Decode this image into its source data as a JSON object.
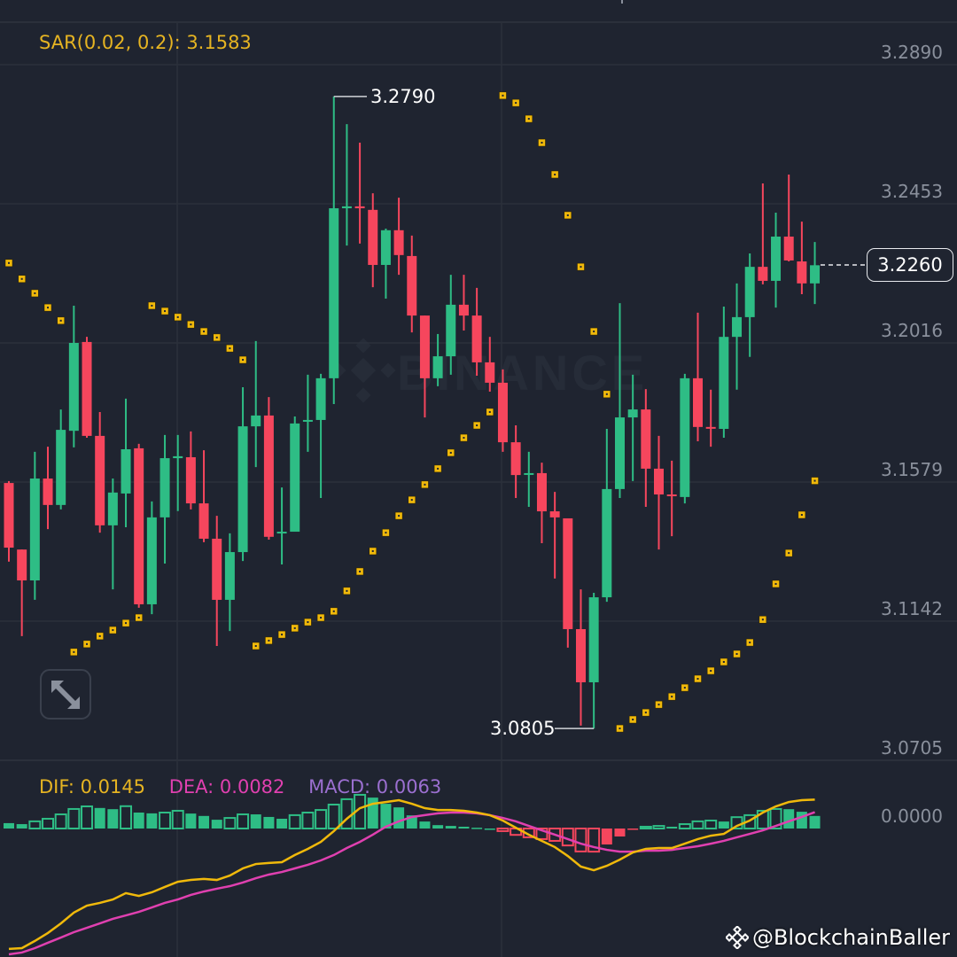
{
  "colors": {
    "background": "#1f2430",
    "up": "#2ebd85",
    "down": "#f6465d",
    "sar": "#f0b90b",
    "dif": "#f0b90b",
    "dea": "#e040b0",
    "macd_label": "#9b6fd0",
    "grid": "#2b303b",
    "axis_text": "#8a909c"
  },
  "legend": {
    "sar": "SAR(0.02, 0.2): 3.1583",
    "dif": "DIF: 0.0145",
    "dea": "DEA: 0.0082",
    "macd": "MACD: 0.0063"
  },
  "watermark": "BINANCE",
  "credit": "@BlockchainBaller",
  "expand_icon": "expand-arrows-icon",
  "chart_data": [
    {
      "type": "candlestick",
      "title": "",
      "yaxis_ticks": [
        "3.2890",
        "3.2453",
        "3.2016",
        "3.1579",
        "3.1142",
        "3.0705"
      ],
      "ylim": [
        3.0705,
        3.289
      ],
      "grid": true,
      "current_price": "3.2260",
      "high_label": "3.2790",
      "low_label": "3.0805",
      "high_index": 25,
      "low_index": 45,
      "open": [
        3.1576,
        3.1367,
        3.127,
        3.159,
        3.1507,
        3.174,
        3.2019,
        3.1724,
        3.1443,
        3.1543,
        3.1685,
        3.1195,
        3.1468,
        3.1654,
        3.1657,
        3.1512,
        3.1401,
        3.1209,
        3.1359,
        3.1754,
        3.1788,
        3.1418,
        3.1423,
        3.1771,
        3.1774,
        3.1905,
        3.2439,
        3.2445,
        3.2434,
        3.2261,
        3.237,
        3.2289,
        3.2102,
        3.1905,
        3.1974,
        3.2136,
        3.2102,
        3.1955,
        3.1891,
        3.1704,
        3.1604,
        3.1607,
        3.1487,
        3.1465,
        3.1117,
        3.095,
        3.1217,
        3.1557,
        3.1782,
        3.1807,
        3.1621,
        3.154,
        3.1532,
        3.1905,
        3.1752,
        3.1746,
        3.2035,
        3.2097,
        3.2255,
        3.2211,
        3.235,
        3.2272,
        3.2203
      ],
      "high": [
        3.1582,
        3.1367,
        3.1674,
        3.169,
        3.1807,
        3.2133,
        3.2035,
        3.1799,
        3.159,
        3.1841,
        3.1699,
        3.1518,
        3.1727,
        3.1727,
        3.1738,
        3.1679,
        3.1473,
        3.1418,
        3.1877,
        3.2022,
        3.1846,
        3.1562,
        3.1785,
        3.1916,
        3.1919,
        3.279,
        3.2703,
        3.2645,
        3.2486,
        3.2375,
        3.2472,
        3.2353,
        3.2102,
        3.2044,
        3.223,
        3.223,
        3.2189,
        3.2035,
        3.1933,
        3.1757,
        3.1674,
        3.164,
        3.1548,
        3.1465,
        3.1242,
        3.1231,
        3.1746,
        3.2141,
        3.1916,
        3.1871,
        3.1724,
        3.1646,
        3.1919,
        3.2111,
        3.1869,
        3.213,
        3.2203,
        3.2297,
        3.2517,
        3.2425,
        3.2545,
        3.2397,
        3.2333
      ],
      "low": [
        3.1329,
        3.1095,
        3.1209,
        3.1431,
        3.1493,
        3.1688,
        3.1718,
        3.142,
        3.1242,
        3.1437,
        3.1184,
        3.1164,
        3.1323,
        3.1488,
        3.1493,
        3.139,
        3.1064,
        3.1111,
        3.1331,
        3.1626,
        3.1398,
        3.132,
        3.1423,
        3.1674,
        3.1529,
        3.1824,
        3.2322,
        3.2328,
        3.2191,
        3.2155,
        3.223,
        3.2049,
        3.1782,
        3.188,
        3.1916,
        3.2055,
        3.1913,
        3.1863,
        3.1674,
        3.1529,
        3.1501,
        3.1387,
        3.1276,
        3.1059,
        3.0814,
        3.0805,
        3.1203,
        3.1529,
        3.1582,
        3.1501,
        3.1367,
        3.1409,
        3.1512,
        3.1707,
        3.169,
        3.1718,
        3.1869,
        3.1972,
        3.22,
        3.2127,
        3.2272,
        3.2169,
        3.2138
      ],
      "close": [
        3.1373,
        3.127,
        3.159,
        3.1507,
        3.1743,
        3.2016,
        3.1724,
        3.1443,
        3.1546,
        3.1682,
        3.1195,
        3.1468,
        3.1654,
        3.166,
        3.1512,
        3.1401,
        3.1209,
        3.1359,
        3.1754,
        3.1788,
        3.1407,
        3.1423,
        3.1763,
        3.1774,
        3.1905,
        3.2439,
        3.2445,
        3.2439,
        3.2261,
        3.237,
        3.2292,
        3.2102,
        3.1905,
        3.1974,
        3.2136,
        3.2102,
        3.1955,
        3.1891,
        3.1704,
        3.1601,
        3.1607,
        3.1487,
        3.1468,
        3.1117,
        3.095,
        3.1217,
        3.1557,
        3.1782,
        3.1807,
        3.1621,
        3.154,
        3.1535,
        3.1905,
        3.1752,
        3.1749,
        3.2035,
        3.2097,
        3.2255,
        3.2211,
        3.235,
        3.2275,
        3.2203,
        3.226
      ],
      "sar": [
        3.2267,
        3.2217,
        3.2172,
        3.2127,
        3.2086,
        3.1045,
        3.107,
        3.1095,
        3.1114,
        3.1136,
        3.1153,
        3.2133,
        3.2116,
        3.2097,
        3.2074,
        3.2052,
        3.2033,
        3.1999,
        3.1963,
        3.1064,
        3.1081,
        3.11,
        3.112,
        3.1139,
        3.1153,
        3.1173,
        3.1237,
        3.1298,
        3.1362,
        3.142,
        3.1473,
        3.1523,
        3.1571,
        3.1621,
        3.1671,
        3.1718,
        3.1757,
        3.1799,
        3.2793,
        3.277,
        3.272,
        3.2645,
        3.2545,
        3.2417,
        3.2255,
        3.2052,
        3.1855,
        3.0805,
        3.0833,
        3.0855,
        3.088,
        3.0905,
        3.0933,
        3.0961,
        3.0986,
        3.1014,
        3.1039,
        3.1075,
        3.1147,
        3.1259,
        3.1356,
        3.1476,
        3.1583
      ]
    },
    {
      "type": "bar+line",
      "yaxis_ticks": [
        "0.0000"
      ],
      "dif": [
        -0.0604,
        -0.06,
        -0.0564,
        -0.0524,
        -0.0476,
        -0.0422,
        -0.0387,
        -0.0373,
        -0.0356,
        -0.0324,
        -0.0338,
        -0.032,
        -0.0293,
        -0.0267,
        -0.0258,
        -0.0253,
        -0.0258,
        -0.0236,
        -0.02,
        -0.0178,
        -0.0173,
        -0.0169,
        -0.0133,
        -0.0102,
        -0.0067,
        -0.0013,
        0.0049,
        0.0102,
        0.0124,
        0.0133,
        0.0142,
        0.0124,
        0.0102,
        0.0093,
        0.0093,
        0.0089,
        0.008,
        0.0067,
        0.004,
        0.0004,
        -0.0031,
        -0.0062,
        -0.0093,
        -0.0138,
        -0.0191,
        -0.0209,
        -0.0187,
        -0.0156,
        -0.012,
        -0.0102,
        -0.0098,
        -0.0098,
        -0.0076,
        -0.0053,
        -0.0036,
        -0.0027,
        0.0013,
        0.004,
        0.008,
        0.0111,
        0.0133,
        0.0142,
        0.0145
      ],
      "dea": [
        -0.0631,
        -0.0622,
        -0.06,
        -0.0573,
        -0.0547,
        -0.052,
        -0.0498,
        -0.0476,
        -0.0453,
        -0.0436,
        -0.0418,
        -0.0396,
        -0.0373,
        -0.0356,
        -0.0333,
        -0.0316,
        -0.0302,
        -0.0289,
        -0.0271,
        -0.0249,
        -0.0231,
        -0.0218,
        -0.02,
        -0.0182,
        -0.016,
        -0.0133,
        -0.0098,
        -0.0067,
        -0.0031,
        0.0009,
        0.0036,
        0.0058,
        0.0067,
        0.0076,
        0.008,
        0.008,
        0.0076,
        0.0067,
        0.0053,
        0.0036,
        0.0013,
        -0.0009,
        -0.0031,
        -0.0053,
        -0.0076,
        -0.0093,
        -0.0107,
        -0.0116,
        -0.0116,
        -0.0111,
        -0.0111,
        -0.0107,
        -0.0098,
        -0.0089,
        -0.0076,
        -0.0062,
        -0.0044,
        -0.0027,
        -0.0009,
        0.0013,
        0.0036,
        0.0058,
        0.0082
      ],
      "macd": [
        0.0027,
        0.0022,
        0.0036,
        0.0049,
        0.0071,
        0.0098,
        0.0111,
        0.0103,
        0.0097,
        0.0112,
        0.008,
        0.0076,
        0.008,
        0.0089,
        0.0075,
        0.0063,
        0.0044,
        0.0053,
        0.0071,
        0.0071,
        0.0058,
        0.0049,
        0.0067,
        0.008,
        0.0093,
        0.012,
        0.0147,
        0.0169,
        0.0155,
        0.0124,
        0.0106,
        0.0066,
        0.0035,
        0.0017,
        0.0013,
        0.0009,
        0.0004,
        0.0,
        -0.0013,
        -0.0032,
        -0.0044,
        -0.0053,
        -0.0062,
        -0.0085,
        -0.0115,
        -0.0116,
        -0.008,
        -0.004,
        -0.0004,
        0.0009,
        0.0013,
        0.0009,
        0.0022,
        0.0036,
        0.004,
        0.0035,
        0.0057,
        0.0067,
        0.0089,
        0.0098,
        0.0097,
        0.0084,
        0.0063
      ]
    }
  ]
}
